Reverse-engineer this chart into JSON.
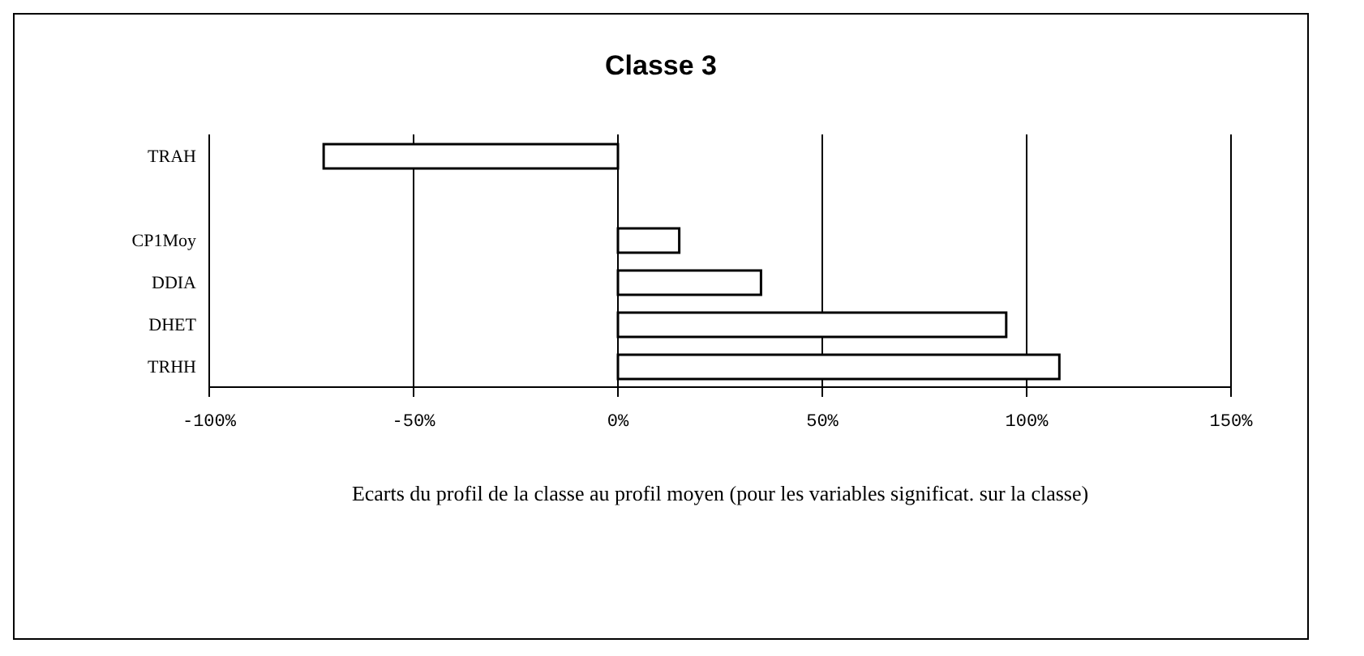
{
  "chart_data": {
    "type": "bar",
    "orientation": "horizontal",
    "title": "Classe 3",
    "xlabel": "Ecarts du profil de la classe au profil moyen (pour les variables significat. sur la classe)",
    "categories": [
      "TRAH",
      null,
      "CP1Moy",
      "DDIA",
      "DHET",
      "TRHH"
    ],
    "values": [
      -72,
      null,
      15,
      35,
      95,
      108
    ],
    "color": "#ffffff",
    "xlim": [
      -100,
      150
    ],
    "xticks": [
      {
        "value": -100,
        "label": "-100%"
      },
      {
        "value": -50,
        "label": "-50%"
      },
      {
        "value": 0,
        "label": "0%"
      },
      {
        "value": 50,
        "label": "50%"
      },
      {
        "value": 100,
        "label": "100%"
      },
      {
        "value": 150,
        "label": "150%"
      }
    ],
    "grid": "x"
  }
}
